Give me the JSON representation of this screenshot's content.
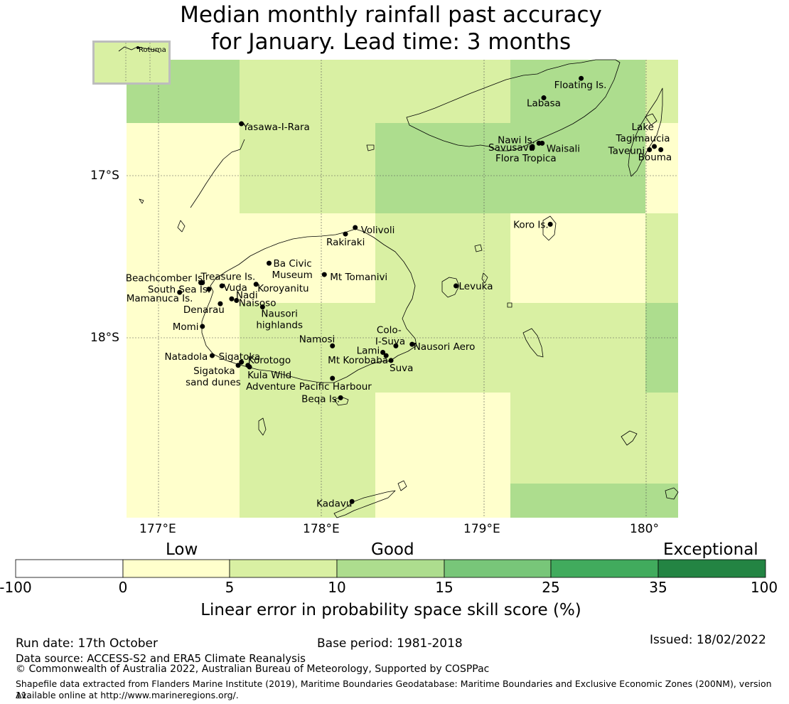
{
  "title_line1": "Median monthly rainfall past accuracy",
  "title_line2": "for January. Lead time: 3 months",
  "inset_label": "Rotuma",
  "colors": {
    "c0": "#ffffff",
    "c1": "#ffffcc",
    "c2": "#d9f0a3",
    "c3": "#addd8e",
    "c4": "#78c679",
    "c5": "#41ab5d",
    "c6": "#238443",
    "coast": "#000000",
    "grid": "#555555",
    "inset_border": "#bdbdbd"
  },
  "axes": {
    "lon_ticks": [
      "177°E",
      "178°E",
      "179°E",
      "180°"
    ],
    "lat_ticks": [
      "17°S",
      "18°S"
    ]
  },
  "skill_grid": {
    "description_units": "LEPS skill score class index (0 = below 0, 1 = 0–5, 2 = 5–10, 3 = 10–15)",
    "cols_lon": [
      "176.8–177.5",
      "177.5–178.33",
      "178.33–179.17",
      "179.17–180",
      "180–180.2"
    ],
    "rows": [
      [
        3,
        2,
        2,
        3,
        2
      ],
      [
        1,
        2,
        3,
        3,
        1
      ],
      [
        1,
        1,
        2,
        1,
        2
      ],
      [
        1,
        2,
        2,
        2,
        3
      ],
      [
        1,
        2,
        1,
        2,
        2
      ],
      [
        1,
        2,
        1,
        3,
        3
      ]
    ]
  },
  "places": [
    {
      "name": "Floating Is.",
      "lon": 179.6,
      "lat": -16.4
    },
    {
      "name": "Labasa",
      "lon": 179.37,
      "lat": -16.52
    },
    {
      "name": "Yasawa-I-Rara",
      "lon": 177.51,
      "lat": -16.68
    },
    {
      "name": "Nawi Is.",
      "lon": 179.34,
      "lat": -16.8
    },
    {
      "name": "Savusavu",
      "lon": 179.3,
      "lat": -16.82
    },
    {
      "name": "Waisali",
      "lon": 179.36,
      "lat": -16.8
    },
    {
      "name": "Flora Tropica",
      "lon": 179.3,
      "lat": -16.83
    },
    {
      "name": "Lake Tagimaucia",
      "lon": 180.05,
      "lat": -16.82
    },
    {
      "name": "Taveuni",
      "lon": 180.02,
      "lat": -16.84
    },
    {
      "name": "Bouma",
      "lon": 180.09,
      "lat": -16.84
    },
    {
      "name": "Volivoli",
      "lon": 178.21,
      "lat": -17.32
    },
    {
      "name": "Rakiraki",
      "lon": 178.15,
      "lat": -17.36
    },
    {
      "name": "Koro Is.",
      "lon": 179.41,
      "lat": -17.3
    },
    {
      "name": "Ba Civic Museum",
      "lon": 177.68,
      "lat": -17.54
    },
    {
      "name": "Mt Tomanivi",
      "lon": 178.02,
      "lat": -17.61
    },
    {
      "name": "Beachcomber Is.",
      "lon": 177.27,
      "lat": -17.66
    },
    {
      "name": "Treasure Is.",
      "lon": 177.26,
      "lat": -17.66
    },
    {
      "name": "Vuda",
      "lon": 177.39,
      "lat": -17.68
    },
    {
      "name": "South Sea Is.",
      "lon": 177.31,
      "lat": -17.7
    },
    {
      "name": "Koroyanitu",
      "lon": 177.6,
      "lat": -17.67
    },
    {
      "name": "Nadi",
      "lon": 177.45,
      "lat": -17.76
    },
    {
      "name": "Naisoso",
      "lon": 177.48,
      "lat": -17.77
    },
    {
      "name": "Mamanuca Is.",
      "lon": 177.13,
      "lat": -17.72
    },
    {
      "name": "Denarau",
      "lon": 177.38,
      "lat": -17.79
    },
    {
      "name": "Levuka",
      "lon": 178.83,
      "lat": -17.68
    },
    {
      "name": "Nausori highlands",
      "lon": 177.64,
      "lat": -17.81
    },
    {
      "name": "Momi",
      "lon": 177.27,
      "lat": -17.93
    },
    {
      "name": "Namosi",
      "lon": 178.07,
      "lat": -18.05
    },
    {
      "name": "Colo-I-Suva",
      "lon": 178.46,
      "lat": -18.05
    },
    {
      "name": "Nausori Aero",
      "lon": 178.56,
      "lat": -18.04
    },
    {
      "name": "Lami",
      "lon": 178.38,
      "lat": -18.09
    },
    {
      "name": "Mt Korobaba",
      "lon": 178.4,
      "lat": -18.11
    },
    {
      "name": "Suva",
      "lon": 178.43,
      "lat": -18.14
    },
    {
      "name": "Natadola",
      "lon": 177.33,
      "lat": -18.11
    },
    {
      "name": "Sigatoka",
      "lon": 177.51,
      "lat": -18.15
    },
    {
      "name": "Korotogo",
      "lon": 177.55,
      "lat": -18.17
    },
    {
      "name": "Sigatoka sand dunes",
      "lon": 177.49,
      "lat": -18.17
    },
    {
      "name": "Kula Wild Adventure",
      "lon": 177.56,
      "lat": -18.18
    },
    {
      "name": "Pacific Harbour",
      "lon": 178.07,
      "lat": -18.25
    },
    {
      "name": "Beqa Is.",
      "lon": 178.12,
      "lat": -18.37
    },
    {
      "name": "Kadavu",
      "lon": 178.19,
      "lat": -19.01
    }
  ],
  "colorbar": {
    "headings": [
      "Low",
      "Good",
      "Exceptional"
    ],
    "ticks": [
      "-100",
      "0",
      "5",
      "10",
      "15",
      "25",
      "35",
      "100"
    ],
    "label": "Linear error in probability space skill score (%)"
  },
  "footer": {
    "run_date": "Run date: 17th October",
    "base_period": "Base period: 1981-2018",
    "issued": "Issued: 18/02/2022",
    "data_source": "Data source: ACCESS-S2 and ERA5 Climate Reanalysis",
    "copyright": "© Commonwealth of Australia 2022, Australian Bureau of Meteorology, Supported by COSPPac",
    "shapefile_line1": "Shapefile data extracted from Flanders Marine Institute (2019), Maritime Boundaries Geodatabase: Maritime Boundaries and Exclusive Economic Zones (200NM), version 11.",
    "shapefile_line2": "Available online at http://www.marineregions.org/."
  }
}
